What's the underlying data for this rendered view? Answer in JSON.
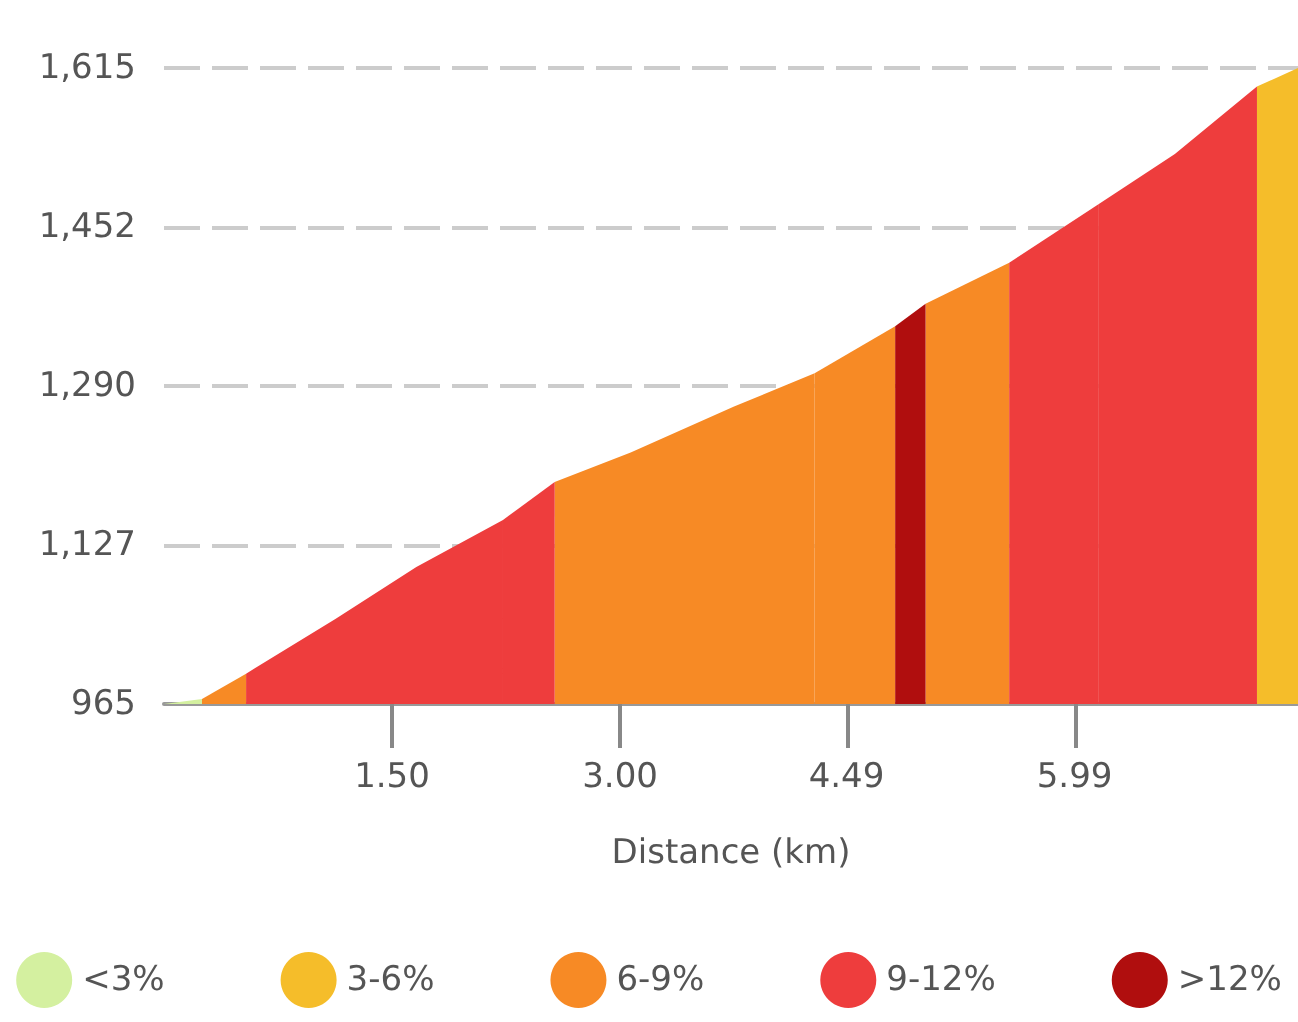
{
  "chart_data": {
    "type": "area",
    "xlabel": "Distance (km)",
    "xlim": [
      0,
      7.46
    ],
    "xticks": [
      {
        "value": 1.5,
        "label": "1.50"
      },
      {
        "value": 3.0,
        "label": "3.00"
      },
      {
        "value": 4.49,
        "label": "4.49"
      },
      {
        "value": 5.99,
        "label": "5.99"
      }
    ],
    "ylim": [
      965,
      1615
    ],
    "yticks": [
      {
        "value": 965,
        "label": "965"
      },
      {
        "value": 1127,
        "label": "1,127"
      },
      {
        "value": 1290,
        "label": "1,290"
      },
      {
        "value": 1452,
        "label": "1,452"
      },
      {
        "value": 1615,
        "label": "1,615"
      }
    ],
    "grid": "y",
    "legend": "bottom",
    "marker": "none",
    "series": [
      {
        "name": "<3%",
        "color": "#d4f0a0",
        "x": [
          0,
          0.25
        ],
        "values": [
          965,
          970
        ]
      },
      {
        "name": "3-6%",
        "color": "#f5bd2a",
        "x": [
          7.19,
          7.46
        ],
        "values": [
          1596,
          1615
        ]
      },
      {
        "name": "6-9%",
        "color": "#f78a25",
        "x": [
          0.25,
          0.54
        ],
        "values": [
          970,
          996
        ]
      },
      {
        "color": "#f78a25",
        "x": [
          2.57,
          3.07,
          3.75,
          4.28
        ],
        "values": [
          1192,
          1222,
          1269,
          1303
        ]
      },
      {
        "color": "#f78a25",
        "x": [
          4.28,
          4.81
        ],
        "values": [
          1303,
          1351
        ]
      },
      {
        "color": "#f78a25",
        "x": [
          5.01,
          5.56
        ],
        "values": [
          1374,
          1416
        ]
      },
      {
        "name": "9-12%",
        "color": "#ee3d3d",
        "x": [
          0.54,
          1.13,
          1.66,
          2.23
        ],
        "values": [
          996,
          1052,
          1105,
          1153
        ]
      },
      {
        "color": "#ee3d3d",
        "x": [
          2.23,
          2.57
        ],
        "values": [
          1153,
          1192
        ]
      },
      {
        "color": "#ee3d3d",
        "x": [
          5.56,
          6.15
        ],
        "values": [
          1416,
          1476
        ]
      },
      {
        "color": "#ee3d3d",
        "x": [
          6.15,
          6.65,
          7.19
        ],
        "values": [
          1476,
          1527,
          1596
        ]
      },
      {
        "name": ">12%",
        "color": "#b00e0e",
        "x": [
          4.81,
          5.01
        ],
        "values": [
          1351,
          1374
        ]
      }
    ]
  }
}
